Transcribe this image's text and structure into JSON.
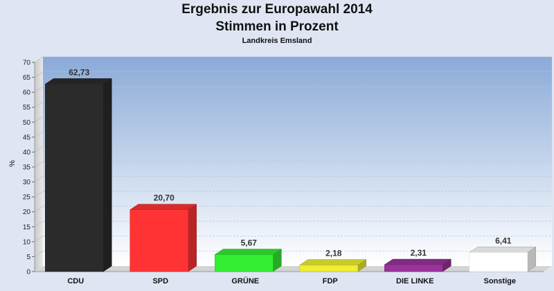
{
  "header": {
    "title_line1": "Ergebnis zur Europawahl 2014",
    "title_line2": "Stimmen in Prozent",
    "subtitle": "Landkreis Emsland"
  },
  "chart_data": {
    "type": "bar",
    "title": "Ergebnis zur Europawahl 2014 Stimmen in Prozent",
    "subtitle": "Landkreis Emsland",
    "xlabel": "",
    "ylabel": "%",
    "ylim": [
      0,
      70
    ],
    "yticks": [
      0,
      5,
      10,
      15,
      20,
      25,
      30,
      35,
      40,
      45,
      50,
      55,
      60,
      65,
      70
    ],
    "grid": true,
    "categories": [
      "CDU",
      "SPD",
      "GRÜNE",
      "FDP",
      "DIE LINKE",
      "Sonstige"
    ],
    "values": [
      62.73,
      20.7,
      5.67,
      2.18,
      2.31,
      6.41
    ],
    "value_labels": [
      "62,73",
      "20,70",
      "5,67",
      "2,18",
      "2,31",
      "6,41"
    ],
    "colors": [
      "#2b2b2b",
      "#ff3333",
      "#33ee33",
      "#eeee33",
      "#993399",
      "#ffffff"
    ]
  }
}
